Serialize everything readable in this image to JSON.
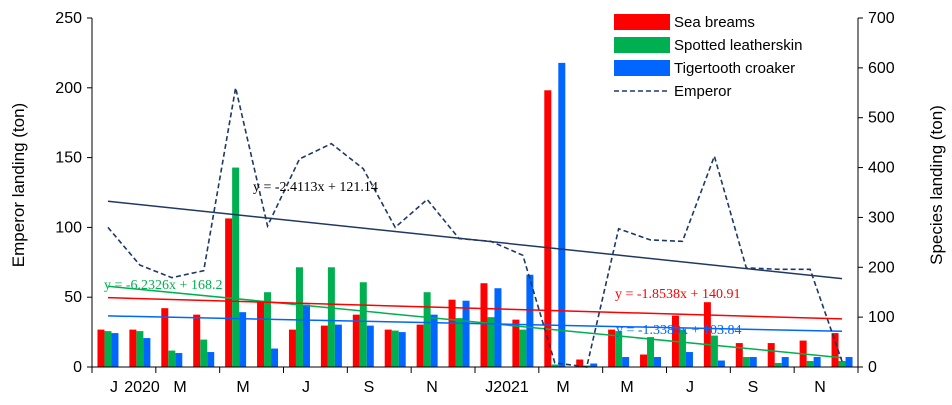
{
  "chart_data": {
    "type": "bar",
    "x_tick_labels": [
      "J",
      "2020",
      "M",
      "M",
      "J",
      "S",
      "N",
      "J2021",
      "M",
      "M",
      "J",
      "S",
      "N"
    ],
    "y_left": {
      "label": "Emperor landing (ton)",
      "lim": [
        0,
        250
      ],
      "ticks": [
        "0",
        "50",
        "100",
        "150",
        "200",
        "250"
      ]
    },
    "y_right": {
      "label": "Species landing (ton)",
      "lim": [
        0,
        700
      ],
      "ticks": [
        "0",
        "100",
        "200",
        "300",
        "400",
        "500",
        "600",
        "700"
      ]
    },
    "months": 24,
    "series": [
      {
        "name": "Sea breams",
        "axis": "right",
        "type": "bar",
        "color": "#ff0000",
        "values": [
          75,
          75,
          118,
          105,
          298,
          133,
          75,
          83,
          105,
          75,
          85,
          135,
          168,
          95,
          555,
          15,
          75,
          25,
          103,
          130,
          48,
          48,
          53,
          68
        ]
      },
      {
        "name": "Spotted leatherskin",
        "axis": "right",
        "type": "bar",
        "color": "#00b050",
        "values": [
          72,
          72,
          33,
          55,
          400,
          150,
          200,
          200,
          170,
          73,
          150,
          98,
          100,
          75,
          5,
          3,
          72,
          60,
          75,
          63,
          20,
          8,
          12,
          12
        ]
      },
      {
        "name": "Tigertooth croaker",
        "axis": "right",
        "type": "bar",
        "color": "#0066ff",
        "values": [
          68,
          58,
          28,
          30,
          110,
          37,
          125,
          85,
          83,
          70,
          105,
          133,
          158,
          185,
          610,
          7,
          20,
          20,
          30,
          13,
          20,
          20,
          20,
          20
        ]
      },
      {
        "name": "Emperor",
        "axis": "left",
        "type": "line",
        "color": "#1f3864",
        "values": [
          100,
          73,
          64,
          69,
          200,
          101,
          149,
          160,
          142,
          100,
          120,
          92,
          90,
          80,
          3,
          0,
          99,
          91,
          90,
          151,
          71,
          70,
          70,
          4
        ]
      }
    ],
    "trendlines": [
      {
        "label": "y = -2.4113x + 121.14",
        "axis": "left",
        "color": "#1f3864",
        "slope": -2.4113,
        "intercept": 121.14
      },
      {
        "label": "y = -6.2326x + 168.2",
        "axis": "right",
        "color": "#00b050",
        "slope": -6.2326,
        "intercept": 168.2
      },
      {
        "label": "y = -1.8538x + 140.91",
        "axis": "right",
        "color": "#ff0000",
        "slope": -1.8538,
        "intercept": 140.91
      },
      {
        "label": "y = -1.3389x + 103.84",
        "axis": "right",
        "color": "#0066ff",
        "slope": -1.3389,
        "intercept": 103.84
      }
    ],
    "legend": [
      "Sea breams",
      "Spotted leatherskin",
      "Tigertooth croaker",
      "Emperor"
    ],
    "legend_position": "top-right",
    "grid": false
  }
}
